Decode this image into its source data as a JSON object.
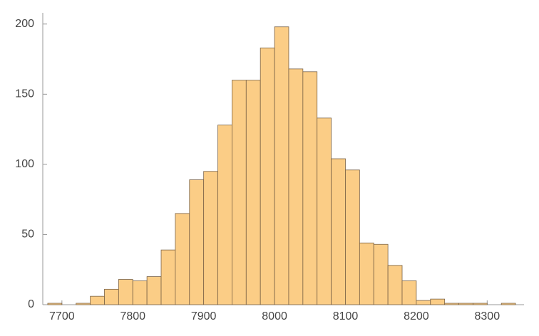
{
  "chart_data": {
    "type": "histogram",
    "bins": [
      7680,
      7700,
      7720,
      7740,
      7760,
      7780,
      7800,
      7820,
      7840,
      7860,
      7880,
      7900,
      7920,
      7940,
      7960,
      7980,
      8000,
      8020,
      8040,
      8060,
      8080,
      8100,
      8120,
      8140,
      8160,
      8180,
      8200,
      8220,
      8240,
      8260,
      8280,
      8300,
      8320,
      8340
    ],
    "values": [
      1,
      0,
      1,
      6,
      11,
      18,
      17,
      20,
      39,
      65,
      89,
      95,
      128,
      160,
      160,
      183,
      198,
      168,
      166,
      133,
      104,
      96,
      44,
      43,
      28,
      17,
      3,
      4,
      1,
      1,
      1,
      0,
      1
    ],
    "color": "#fbcd86",
    "edgecolor": "#7a6246",
    "xlim": [
      7673,
      8352
    ],
    "xticks": [
      7700,
      7800,
      7900,
      8000,
      8100,
      8200,
      8300
    ],
    "ylim": [
      0,
      208
    ],
    "yticks": [
      0,
      50,
      100,
      150,
      200
    ]
  }
}
